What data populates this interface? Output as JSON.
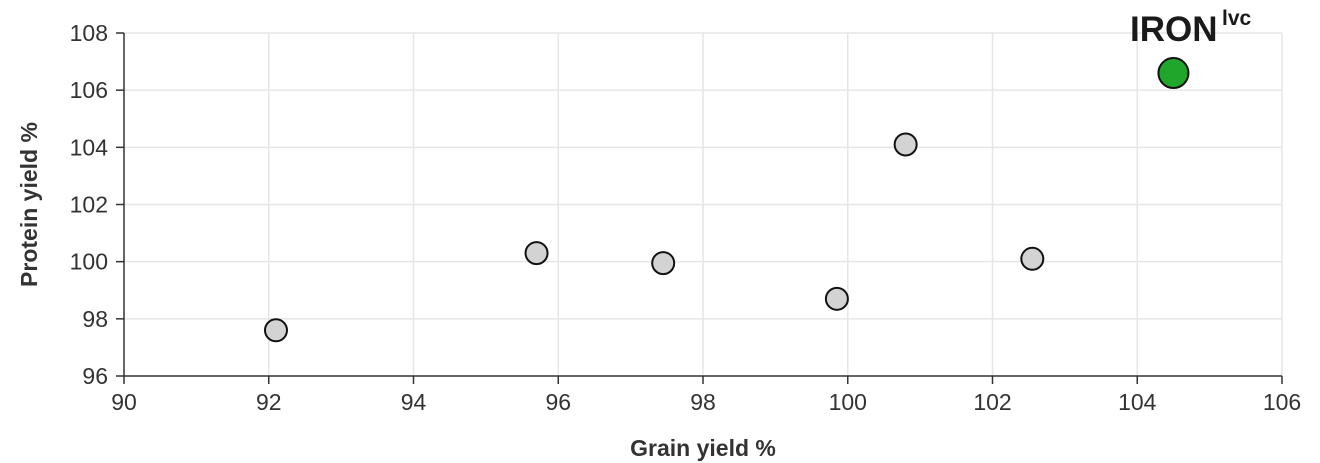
{
  "chart_data": {
    "type": "scatter",
    "xlabel": "Grain yield %",
    "ylabel": "Protein yield %",
    "xlim": [
      90,
      106
    ],
    "ylim": [
      96,
      108
    ],
    "xticks": [
      90,
      92,
      94,
      96,
      98,
      100,
      102,
      104,
      106
    ],
    "yticks": [
      96,
      98,
      100,
      102,
      104,
      106,
      108
    ],
    "grid": true,
    "colors": {
      "point": "#d3d3d3",
      "highlight": "#1fa62b",
      "grid": "#e6e6e6",
      "axis": "#333333"
    },
    "points": [
      {
        "x": 92.1,
        "y": 97.6
      },
      {
        "x": 95.7,
        "y": 100.3
      },
      {
        "x": 97.45,
        "y": 99.95
      },
      {
        "x": 99.85,
        "y": 98.7
      },
      {
        "x": 100.8,
        "y": 104.1
      },
      {
        "x": 102.55,
        "y": 100.1
      }
    ],
    "highlight": {
      "x": 104.5,
      "y": 106.6
    }
  },
  "brand": {
    "main": "IRON",
    "sup": "lvc"
  }
}
